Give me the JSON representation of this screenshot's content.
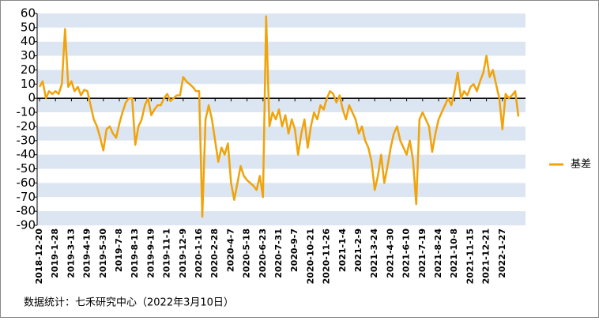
{
  "chart_data": {
    "type": "line",
    "categories": [
      "2018-12-20",
      null,
      null,
      null,
      null,
      "2019-1-28",
      null,
      null,
      null,
      null,
      "2019-3-13",
      null,
      null,
      null,
      null,
      "2019-4-19",
      null,
      null,
      null,
      null,
      "2019-5-30",
      null,
      null,
      null,
      null,
      "2019-7-8",
      null,
      null,
      null,
      null,
      "2019-8-13",
      null,
      null,
      null,
      null,
      "2019-9-19",
      null,
      null,
      null,
      null,
      "2019-11-1",
      null,
      null,
      null,
      null,
      "2019-12-9",
      null,
      null,
      null,
      null,
      "2020-1-16",
      null,
      null,
      null,
      null,
      "2020-2-28",
      null,
      null,
      null,
      null,
      "2020-4-7",
      null,
      null,
      null,
      null,
      "2020-5-18",
      null,
      null,
      null,
      null,
      "2020-6-23",
      null,
      null,
      null,
      null,
      "2020-7-31",
      null,
      null,
      null,
      null,
      "2020-9-7",
      null,
      null,
      null,
      null,
      "2020-10-21",
      null,
      null,
      null,
      null,
      "2020-11-26",
      null,
      null,
      null,
      null,
      "2021-1-4",
      null,
      null,
      null,
      null,
      "2021-2-9",
      null,
      null,
      null,
      null,
      "2021-3-24",
      null,
      null,
      null,
      null,
      "2021-4-30",
      null,
      null,
      null,
      null,
      "2021-6-10",
      null,
      null,
      null,
      null,
      "2021-7-19",
      null,
      null,
      null,
      null,
      "2021-8-24",
      null,
      null,
      null,
      null,
      "2021-10-8",
      null,
      null,
      null,
      null,
      "2021-11-15",
      null,
      null,
      null,
      null,
      "2021-12-21",
      null,
      null,
      null,
      null,
      "2022-1-27",
      null,
      null,
      null,
      null,
      null
    ],
    "series": [
      {
        "name": "基差",
        "color": "#f0a30a",
        "values": [
          8,
          12,
          0,
          5,
          3,
          5,
          3,
          10,
          49,
          8,
          12,
          5,
          8,
          2,
          6,
          5,
          -5,
          -15,
          -20,
          -28,
          -37,
          -22,
          -20,
          -25,
          -28,
          -18,
          -10,
          -3,
          0,
          0,
          -33,
          -20,
          -15,
          -5,
          0,
          -12,
          -8,
          -5,
          -5,
          0,
          3,
          -2,
          0,
          2,
          2,
          15,
          12,
          10,
          8,
          5,
          5,
          -84,
          -15,
          -5,
          -15,
          -30,
          -45,
          -35,
          -40,
          -32,
          -60,
          -72,
          -60,
          -48,
          -55,
          -58,
          -60,
          -62,
          -65,
          -55,
          -70,
          58,
          -20,
          -10,
          -15,
          -8,
          -20,
          -12,
          -25,
          -15,
          -22,
          -40,
          -25,
          -15,
          -35,
          -20,
          -10,
          -15,
          -5,
          -8,
          0,
          5,
          3,
          -3,
          2,
          -8,
          -15,
          -5,
          -10,
          -15,
          -25,
          -20,
          -30,
          -35,
          -45,
          -65,
          -55,
          -40,
          -60,
          -48,
          -35,
          -25,
          -20,
          -30,
          -35,
          -40,
          -30,
          -44,
          -75,
          -15,
          -10,
          -15,
          -20,
          -38,
          -25,
          -15,
          -10,
          -5,
          0,
          -5,
          5,
          18,
          0,
          5,
          2,
          8,
          10,
          5,
          12,
          18,
          30,
          15,
          20,
          10,
          0,
          -22,
          3,
          0,
          2,
          5,
          -13
        ]
      }
    ],
    "ylim": [
      -90,
      60
    ],
    "yticks": [
      60,
      50,
      40,
      30,
      20,
      10,
      0,
      -10,
      -20,
      -30,
      -40,
      -50,
      -60,
      -70,
      -80,
      -90
    ],
    "grid": true,
    "legend": "right",
    "source": "数据统计：七禾研究中心（2022年3月10日）"
  }
}
